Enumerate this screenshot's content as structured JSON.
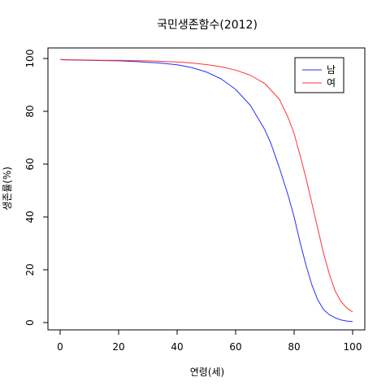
{
  "chart_data": {
    "type": "line",
    "title": "국민생존함수(2012)",
    "xlabel": "연령(세)",
    "ylabel": "생존률(%)",
    "xlim": [
      0,
      100
    ],
    "ylim": [
      0,
      100
    ],
    "x_ticks": [
      "0",
      "20",
      "40",
      "60",
      "80",
      "100"
    ],
    "y_ticks": [
      "0",
      "20",
      "40",
      "60",
      "80",
      "100"
    ],
    "grid": false,
    "legend_position": "top-right",
    "series": [
      {
        "name": "남",
        "color": "#2b2bff",
        "x": [
          0,
          1,
          5,
          10,
          15,
          20,
          25,
          30,
          35,
          40,
          45,
          50,
          55,
          60,
          65,
          70,
          72,
          75,
          78,
          80,
          82,
          84,
          86,
          88,
          90,
          92,
          94,
          96,
          98,
          100
        ],
        "y": [
          99.7,
          99.5,
          99.4,
          99.3,
          99.2,
          99.1,
          98.9,
          98.6,
          98.2,
          97.6,
          96.6,
          94.9,
          92.3,
          88.3,
          82.3,
          73.0,
          68.0,
          58.5,
          48.0,
          40.0,
          30.5,
          22.0,
          14.5,
          8.8,
          5.0,
          3.0,
          1.8,
          1.0,
          0.6,
          0.4
        ]
      },
      {
        "name": "여",
        "color": "#ff3333",
        "x": [
          0,
          1,
          5,
          10,
          15,
          20,
          25,
          30,
          35,
          40,
          45,
          50,
          55,
          60,
          65,
          70,
          75,
          78,
          80,
          82,
          84,
          86,
          88,
          90,
          92,
          94,
          96,
          98,
          100
        ],
        "y": [
          99.7,
          99.6,
          99.5,
          99.4,
          99.3,
          99.3,
          99.2,
          99.1,
          98.9,
          98.7,
          98.3,
          97.7,
          96.9,
          95.6,
          93.7,
          90.5,
          84.5,
          77.5,
          71.5,
          63.5,
          55.0,
          45.5,
          36.0,
          26.5,
          18.5,
          12.0,
          8.0,
          5.5,
          4.0
        ]
      }
    ]
  }
}
